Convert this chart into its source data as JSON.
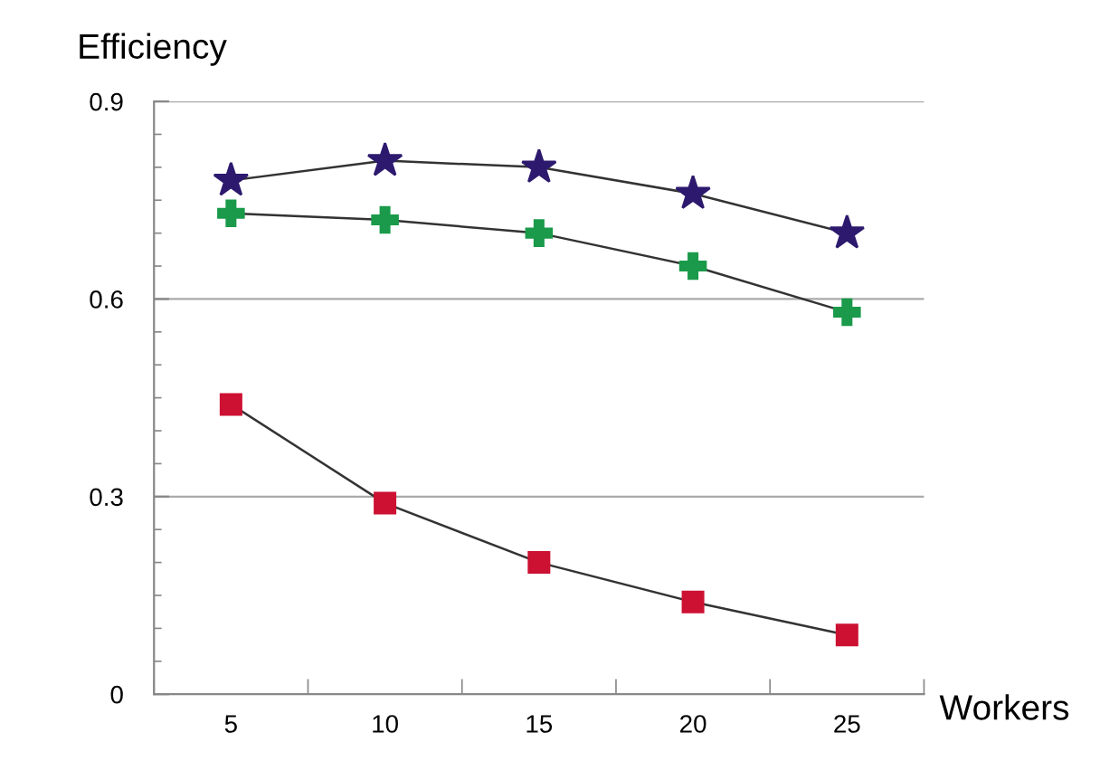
{
  "chart_data": {
    "type": "line",
    "xlabel": "Workers",
    "ylabel": "Efficiency",
    "x": [
      5,
      10,
      15,
      20,
      25
    ],
    "xlim": [
      2.5,
      27.5
    ],
    "xticks": [
      {
        "value": 2.5,
        "label": null
      },
      5,
      {
        "value": 7.5,
        "label": null
      },
      10,
      {
        "value": 12.5,
        "label": null
      },
      15,
      {
        "value": 17.5,
        "label": null
      },
      20,
      {
        "value": 22.5,
        "label": null
      },
      25,
      {
        "value": 27.5,
        "label": null
      }
    ],
    "ylim": [
      0,
      0.9
    ],
    "yticks": [
      0,
      {
        "value": 0.05,
        "label": null
      },
      {
        "value": 0.1,
        "label": null
      },
      {
        "value": 0.15,
        "label": null
      },
      {
        "value": 0.2,
        "label": null
      },
      {
        "value": 0.25,
        "label": null
      },
      0.3,
      {
        "value": 0.35,
        "label": null
      },
      {
        "value": 0.4,
        "label": null
      },
      {
        "value": 0.45,
        "label": null
      },
      {
        "value": 0.5,
        "label": null
      },
      {
        "value": 0.55,
        "label": null
      },
      0.6,
      {
        "value": 0.65,
        "label": null
      },
      {
        "value": 0.7,
        "label": null
      },
      {
        "value": 0.75,
        "label": null
      },
      {
        "value": 0.8,
        "label": null
      },
      {
        "value": 0.85,
        "label": null
      },
      0.9
    ],
    "grid": "y",
    "series": [
      {
        "color": "#2d1a6e",
        "marker": "star",
        "values": [
          0.78,
          0.81,
          0.8,
          0.76,
          0.7
        ]
      },
      {
        "color": "#1a9a4a",
        "marker": "cross",
        "values": [
          0.73,
          0.72,
          0.7,
          0.65,
          0.58
        ]
      },
      {
        "color": "#cc1133",
        "marker": "square",
        "values": [
          0.44,
          0.29,
          0.2,
          0.14,
          0.09
        ]
      }
    ]
  }
}
